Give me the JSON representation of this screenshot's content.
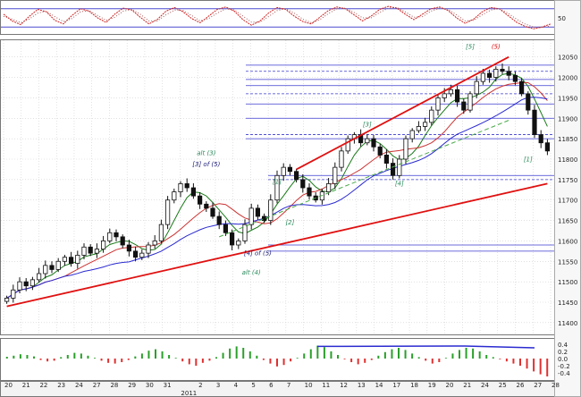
{
  "chart_data": [
    {
      "panel": "stochastic",
      "type": "line",
      "y_ticks": [
        50
      ],
      "ylim": [
        0,
        100
      ],
      "levels": [
        80,
        20
      ],
      "series": [
        {
          "values": [
            62,
            40,
            28,
            55,
            78,
            70,
            42,
            30,
            58,
            80,
            72,
            50,
            35,
            62,
            82,
            76,
            52,
            30,
            45,
            72,
            84,
            70,
            48,
            34,
            56,
            78,
            86,
            72,
            44,
            26,
            40,
            66,
            84,
            78,
            56,
            38,
            30,
            52,
            74,
            86,
            80,
            60,
            40,
            56,
            78,
            88,
            82,
            62,
            44,
            62,
            80,
            86,
            74,
            50,
            32,
            46,
            70,
            84,
            80,
            58,
            36,
            22,
            14,
            20,
            30
          ]
        },
        {
          "values": [
            55,
            46,
            34,
            46,
            66,
            72,
            54,
            38,
            48,
            70,
            74,
            58,
            42,
            52,
            72,
            78,
            62,
            40,
            40,
            60,
            76,
            74,
            58,
            40,
            48,
            66,
            80,
            76,
            56,
            36,
            36,
            54,
            74,
            80,
            66,
            46,
            34,
            44,
            64,
            80,
            82,
            68,
            50,
            50,
            68,
            82,
            84,
            70,
            52,
            54,
            72,
            82,
            78,
            60,
            40,
            42,
            60,
            76,
            80,
            66,
            46,
            30,
            20,
            18,
            24
          ]
        }
      ]
    },
    {
      "panel": "price",
      "type": "candlestick",
      "y_ticks": [
        11400,
        11450,
        11500,
        11550,
        11600,
        11650,
        11700,
        11750,
        11800,
        11850,
        11900,
        11950,
        12000,
        12050
      ],
      "ylim": [
        11380,
        12080
      ],
      "x_ticks": [
        "20",
        "21",
        "22",
        "23",
        "24",
        "27",
        "28",
        "29",
        "30",
        "31",
        "2011",
        "2",
        "3",
        "4",
        "5",
        "6",
        "7",
        "10",
        "11",
        "12",
        "13",
        "14",
        "17",
        "18",
        "19",
        "20",
        "21",
        "24",
        "25",
        "26",
        "27",
        "28"
      ],
      "ohlc_close": [
        11460,
        11480,
        11500,
        11490,
        11505,
        11520,
        11540,
        11530,
        11550,
        11560,
        11545,
        11565,
        11585,
        11570,
        11580,
        11600,
        11620,
        11610,
        11590,
        11575,
        11560,
        11570,
        11590,
        11600,
        11640,
        11700,
        11720,
        11740,
        11730,
        11710,
        11690,
        11680,
        11660,
        11640,
        11620,
        11590,
        11600,
        11640,
        11680,
        11660,
        11650,
        11700,
        11760,
        11780,
        11770,
        11750,
        11730,
        11710,
        11700,
        11720,
        11740,
        11780,
        11820,
        11850,
        11860,
        11840,
        11850,
        11830,
        11810,
        11790,
        11760,
        11800,
        11850,
        11870,
        11880,
        11890,
        11920,
        11950,
        11960,
        11970,
        11940,
        11920,
        11960,
        11990,
        12010,
        12000,
        12020,
        12015,
        12005,
        11990,
        11960,
        11920,
        11860,
        11840,
        11820
      ],
      "moving_averages": [
        {
          "color": "#1a7a1a"
        },
        {
          "color": "#cc3333"
        },
        {
          "color": "#2a2ad0"
        }
      ],
      "fib_levels": [
        12030,
        12015,
        11995,
        11980,
        11960,
        11935,
        11900,
        11860,
        11850,
        11760,
        11750,
        11590,
        11575
      ],
      "trendlines": [
        {
          "color": "#e01010",
          "from": [
            0,
            11440
          ],
          "to": [
            84,
            11740
          ]
        },
        {
          "color": "#e01010",
          "from": [
            45,
            11775
          ],
          "to": [
            78,
            12050
          ]
        },
        {
          "color": "#4caa4c",
          "dashed": true,
          "from": [
            33,
            11610
          ],
          "to": [
            78,
            11895
          ]
        }
      ],
      "annotations": [
        {
          "text": "alt (3)",
          "bar": 31,
          "price": 11810,
          "color": "#2a8a5a"
        },
        {
          "text": "[3] of (5)",
          "bar": 31,
          "price": 11782,
          "color": "#1a1a7a"
        },
        {
          "text": "[1]",
          "bar": 42,
          "price": 11740,
          "color": "#2a8a5a"
        },
        {
          "text": "[2]",
          "bar": 44,
          "price": 11640,
          "color": "#2a8a5a"
        },
        {
          "text": "[4] of (5)",
          "bar": 39,
          "price": 11565,
          "color": "#1a1a7a"
        },
        {
          "text": "alt (4)",
          "bar": 38,
          "price": 11518,
          "color": "#2a8a5a"
        },
        {
          "text": "[3]",
          "bar": 56,
          "price": 11880,
          "color": "#2a8a5a"
        },
        {
          "text": "[4]",
          "bar": 61,
          "price": 11735,
          "color": "#2a8a5a"
        },
        {
          "text": "[5]",
          "bar": 72,
          "price": 12070,
          "color": "#2a8a5a"
        },
        {
          "text": "(5)",
          "bar": 76,
          "price": 12070,
          "color": "#e01010"
        },
        {
          "text": "[1]",
          "bar": 81,
          "price": 11795,
          "color": "#2a8a5a"
        }
      ]
    },
    {
      "panel": "histogram",
      "type": "bar",
      "y_ticks": [
        0.4,
        0.2,
        0.0,
        -0.2,
        -0.4
      ],
      "ylim": [
        -0.55,
        0.5
      ],
      "values": [
        0.05,
        0.08,
        0.12,
        0.1,
        0.06,
        -0.04,
        -0.08,
        -0.06,
        0.04,
        0.1,
        0.16,
        0.14,
        0.08,
        0.02,
        -0.06,
        -0.12,
        -0.14,
        -0.1,
        -0.04,
        0.06,
        0.14,
        0.22,
        0.26,
        0.2,
        0.1,
        0.02,
        -0.08,
        -0.16,
        -0.2,
        -0.12,
        -0.06,
        0.04,
        0.16,
        0.28,
        0.34,
        0.3,
        0.2,
        0.08,
        -0.04,
        -0.14,
        -0.22,
        -0.18,
        -0.08,
        0.02,
        0.14,
        0.26,
        0.36,
        0.32,
        0.2,
        0.1,
        -0.02,
        -0.1,
        -0.16,
        -0.12,
        -0.04,
        0.08,
        0.18,
        0.26,
        0.3,
        0.24,
        0.14,
        0.04,
        -0.06,
        -0.14,
        -0.1,
        0.02,
        0.14,
        0.24,
        0.3,
        0.28,
        0.2,
        0.1,
        0.04,
        -0.02,
        -0.08,
        -0.14,
        -0.2,
        -0.28,
        -0.36,
        -0.44,
        -0.5
      ]
    }
  ]
}
